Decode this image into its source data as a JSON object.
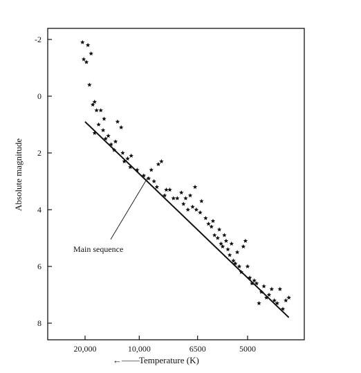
{
  "chart_data": {
    "type": "scatter",
    "title": "",
    "xlabel": "Temperature (K)",
    "xlabel_prefix": "←——",
    "ylabel": "Absolute magnitude",
    "y_inverted": true,
    "ylim": [
      -2.2,
      8.2
    ],
    "y_ticks": [
      {
        "value": -2,
        "label": "-2"
      },
      {
        "value": 0,
        "label": "0"
      },
      {
        "value": 2,
        "label": "2"
      },
      {
        "value": 4,
        "label": "4"
      },
      {
        "value": 6,
        "label": "6"
      },
      {
        "value": 8,
        "label": "8"
      }
    ],
    "x_scale": "reciprocal",
    "x_ticks": [
      {
        "value": 20000,
        "label": "20,000"
      },
      {
        "value": 10000,
        "label": "10,000"
      },
      {
        "value": 6500,
        "label": "6500"
      },
      {
        "value": 5000,
        "label": "5000"
      }
    ],
    "grid": false,
    "annotation": "Main sequence",
    "fit_line": [
      {
        "temp": 20000,
        "mag": 0.9
      },
      {
        "temp": 4200,
        "mag": 7.8
      }
    ],
    "points": [
      {
        "temp": 21000,
        "mag": -1.9
      },
      {
        "temp": 19000,
        "mag": -1.8
      },
      {
        "temp": 18000,
        "mag": -1.5
      },
      {
        "temp": 20500,
        "mag": -1.3
      },
      {
        "temp": 19500,
        "mag": -1.2
      },
      {
        "temp": 18500,
        "mag": -0.4
      },
      {
        "temp": 17500,
        "mag": 0.3
      },
      {
        "temp": 17000,
        "mag": 0.2
      },
      {
        "temp": 16500,
        "mag": 0.5
      },
      {
        "temp": 15500,
        "mag": 0.5
      },
      {
        "temp": 14800,
        "mag": 0.8
      },
      {
        "temp": 16000,
        "mag": 1.0
      },
      {
        "temp": 15000,
        "mag": 1.2
      },
      {
        "temp": 14000,
        "mag": 1.4
      },
      {
        "temp": 17000,
        "mag": 1.3
      },
      {
        "temp": 12500,
        "mag": 0.9
      },
      {
        "temp": 12000,
        "mag": 1.1
      },
      {
        "temp": 13500,
        "mag": 1.7
      },
      {
        "temp": 13000,
        "mag": 1.9
      },
      {
        "temp": 12800,
        "mag": 1.6
      },
      {
        "temp": 11600,
        "mag": 2.3
      },
      {
        "temp": 11200,
        "mag": 2.2
      },
      {
        "temp": 10800,
        "mag": 2.1
      },
      {
        "temp": 10900,
        "mag": 2.5
      },
      {
        "temp": 10200,
        "mag": 2.6
      },
      {
        "temp": 9600,
        "mag": 2.8
      },
      {
        "temp": 9000,
        "mag": 2.6
      },
      {
        "temp": 8500,
        "mag": 2.4
      },
      {
        "temp": 8300,
        "mag": 2.3
      },
      {
        "temp": 8800,
        "mag": 3.0
      },
      {
        "temp": 8600,
        "mag": 3.2
      },
      {
        "temp": 8000,
        "mag": 3.3
      },
      {
        "temp": 8100,
        "mag": 3.5
      },
      {
        "temp": 7800,
        "mag": 3.3
      },
      {
        "temp": 7600,
        "mag": 3.6
      },
      {
        "temp": 7200,
        "mag": 3.4
      },
      {
        "temp": 7100,
        "mag": 3.8
      },
      {
        "temp": 7000,
        "mag": 3.6
      },
      {
        "temp": 6800,
        "mag": 3.5
      },
      {
        "temp": 6700,
        "mag": 3.9
      },
      {
        "temp": 6600,
        "mag": 3.2
      },
      {
        "temp": 6550,
        "mag": 4.0
      },
      {
        "temp": 6400,
        "mag": 4.1
      },
      {
        "temp": 6350,
        "mag": 3.7
      },
      {
        "temp": 6200,
        "mag": 4.3
      },
      {
        "temp": 6100,
        "mag": 4.5
      },
      {
        "temp": 6000,
        "mag": 4.6
      },
      {
        "temp": 5950,
        "mag": 4.4
      },
      {
        "temp": 5900,
        "mag": 4.9
      },
      {
        "temp": 5800,
        "mag": 5.0
      },
      {
        "temp": 5750,
        "mag": 4.7
      },
      {
        "temp": 5700,
        "mag": 5.2
      },
      {
        "temp": 5650,
        "mag": 5.3
      },
      {
        "temp": 5550,
        "mag": 5.1
      },
      {
        "temp": 5500,
        "mag": 5.4
      },
      {
        "temp": 5450,
        "mag": 5.6
      },
      {
        "temp": 5400,
        "mag": 5.2
      },
      {
        "temp": 5350,
        "mag": 5.8
      },
      {
        "temp": 5300,
        "mag": 5.9
      },
      {
        "temp": 5250,
        "mag": 5.5
      },
      {
        "temp": 5200,
        "mag": 6.0
      },
      {
        "temp": 5150,
        "mag": 6.2
      },
      {
        "temp": 5100,
        "mag": 5.3
      },
      {
        "temp": 5050,
        "mag": 5.1
      },
      {
        "temp": 5000,
        "mag": 6.0
      },
      {
        "temp": 4950,
        "mag": 6.4
      },
      {
        "temp": 4850,
        "mag": 6.5
      },
      {
        "temp": 4800,
        "mag": 6.6
      },
      {
        "temp": 4700,
        "mag": 6.9
      },
      {
        "temp": 4650,
        "mag": 6.7
      },
      {
        "temp": 4600,
        "mag": 7.1
      },
      {
        "temp": 4550,
        "mag": 7.0
      },
      {
        "temp": 4500,
        "mag": 6.8
      },
      {
        "temp": 4450,
        "mag": 7.2
      },
      {
        "temp": 4400,
        "mag": 7.3
      },
      {
        "temp": 4350,
        "mag": 6.8
      },
      {
        "temp": 4300,
        "mag": 7.5
      },
      {
        "temp": 4250,
        "mag": 7.2
      },
      {
        "temp": 4200,
        "mag": 7.1
      },
      {
        "temp": 4750,
        "mag": 7.3
      },
      {
        "temp": 4900,
        "mag": 6.6
      },
      {
        "temp": 5600,
        "mag": 4.9
      },
      {
        "temp": 6900,
        "mag": 4.0
      },
      {
        "temp": 7400,
        "mag": 3.6
      },
      {
        "temp": 9200,
        "mag": 2.9
      },
      {
        "temp": 11800,
        "mag": 2.0
      },
      {
        "temp": 14500,
        "mag": 1.5
      }
    ]
  }
}
